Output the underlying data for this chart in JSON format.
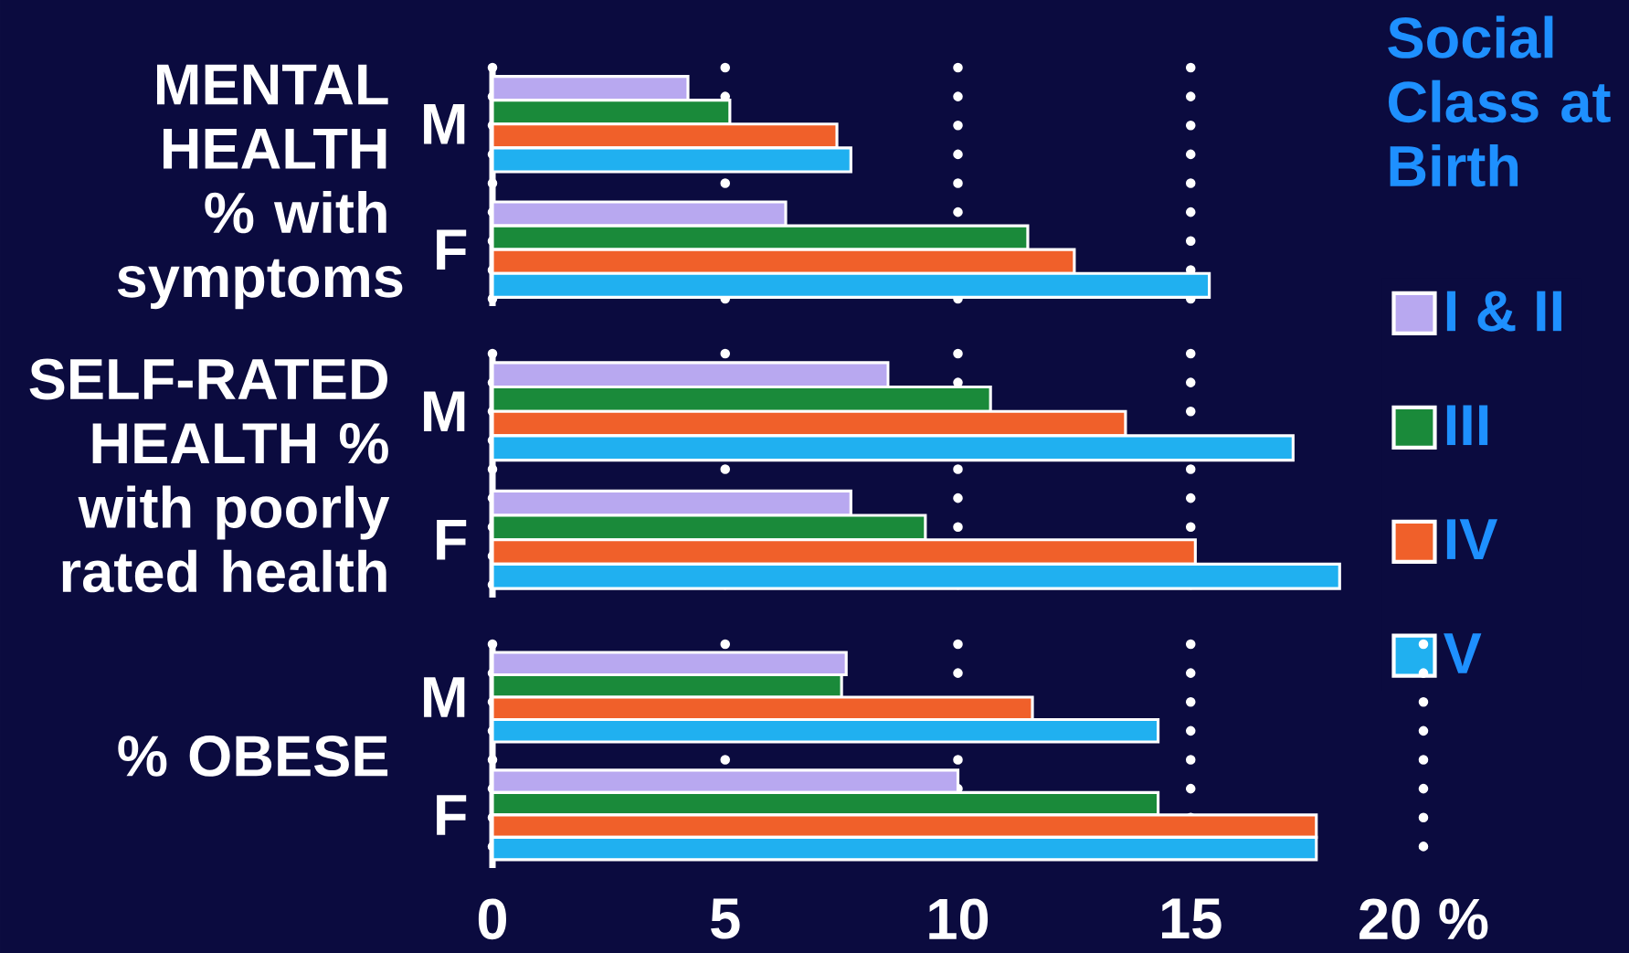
{
  "chart_data": [
    {
      "type": "bar",
      "orientation": "horizontal",
      "ylabel": "MENTAL HEALTH % with symptoms",
      "categories": [
        "M",
        "F"
      ],
      "series": [
        {
          "name": "I & II",
          "color": "#b8a8f0",
          "values": [
            4.2,
            6.3
          ]
        },
        {
          "name": "III",
          "color": "#1a8a3a",
          "values": [
            5.1,
            11.5
          ]
        },
        {
          "name": "IV",
          "color": "#f0602a",
          "values": [
            7.4,
            12.5
          ]
        },
        {
          "name": "V",
          "color": "#20b0f0",
          "values": [
            7.7,
            15.4
          ]
        }
      ],
      "xlim": [
        0,
        20
      ],
      "xticks": [
        0,
        5,
        10,
        15
      ],
      "grid": "x",
      "tick_labels": "y",
      "legend": "right",
      "legend_title": "Social Class at Birth"
    },
    {
      "type": "bar",
      "orientation": "horizontal",
      "ylabel": "SELF-RATED HEALTH % with poorly rated health",
      "categories": [
        "M",
        "F"
      ],
      "series": [
        {
          "color": "#b8a8f0",
          "values": [
            8.5,
            7.7
          ]
        },
        {
          "color": "#1a8a3a",
          "values": [
            10.7,
            9.3
          ]
        },
        {
          "color": "#f0602a",
          "values": [
            13.6,
            15.1
          ]
        },
        {
          "color": "#20b0f0",
          "values": [
            17.2,
            18.2
          ]
        }
      ],
      "xlim": [
        0,
        20
      ],
      "xticks": [
        0,
        5,
        10,
        15
      ],
      "grid": "x",
      "tick_labels": "y"
    },
    {
      "type": "bar",
      "orientation": "horizontal",
      "ylabel": "% OBESE",
      "categories": [
        "M",
        "F"
      ],
      "series": [
        {
          "color": "#b8a8f0",
          "values": [
            7.6,
            10.0
          ]
        },
        {
          "color": "#1a8a3a",
          "values": [
            7.5,
            14.3
          ]
        },
        {
          "color": "#f0602a",
          "values": [
            11.6,
            17.7
          ]
        },
        {
          "color": "#20b0f0",
          "values": [
            14.3,
            17.7
          ]
        }
      ],
      "xlim": [
        0,
        20
      ],
      "xticks": [
        0,
        5,
        10,
        15,
        {
          "value": 20,
          "label": "20 %"
        }
      ],
      "grid": "x"
    }
  ]
}
